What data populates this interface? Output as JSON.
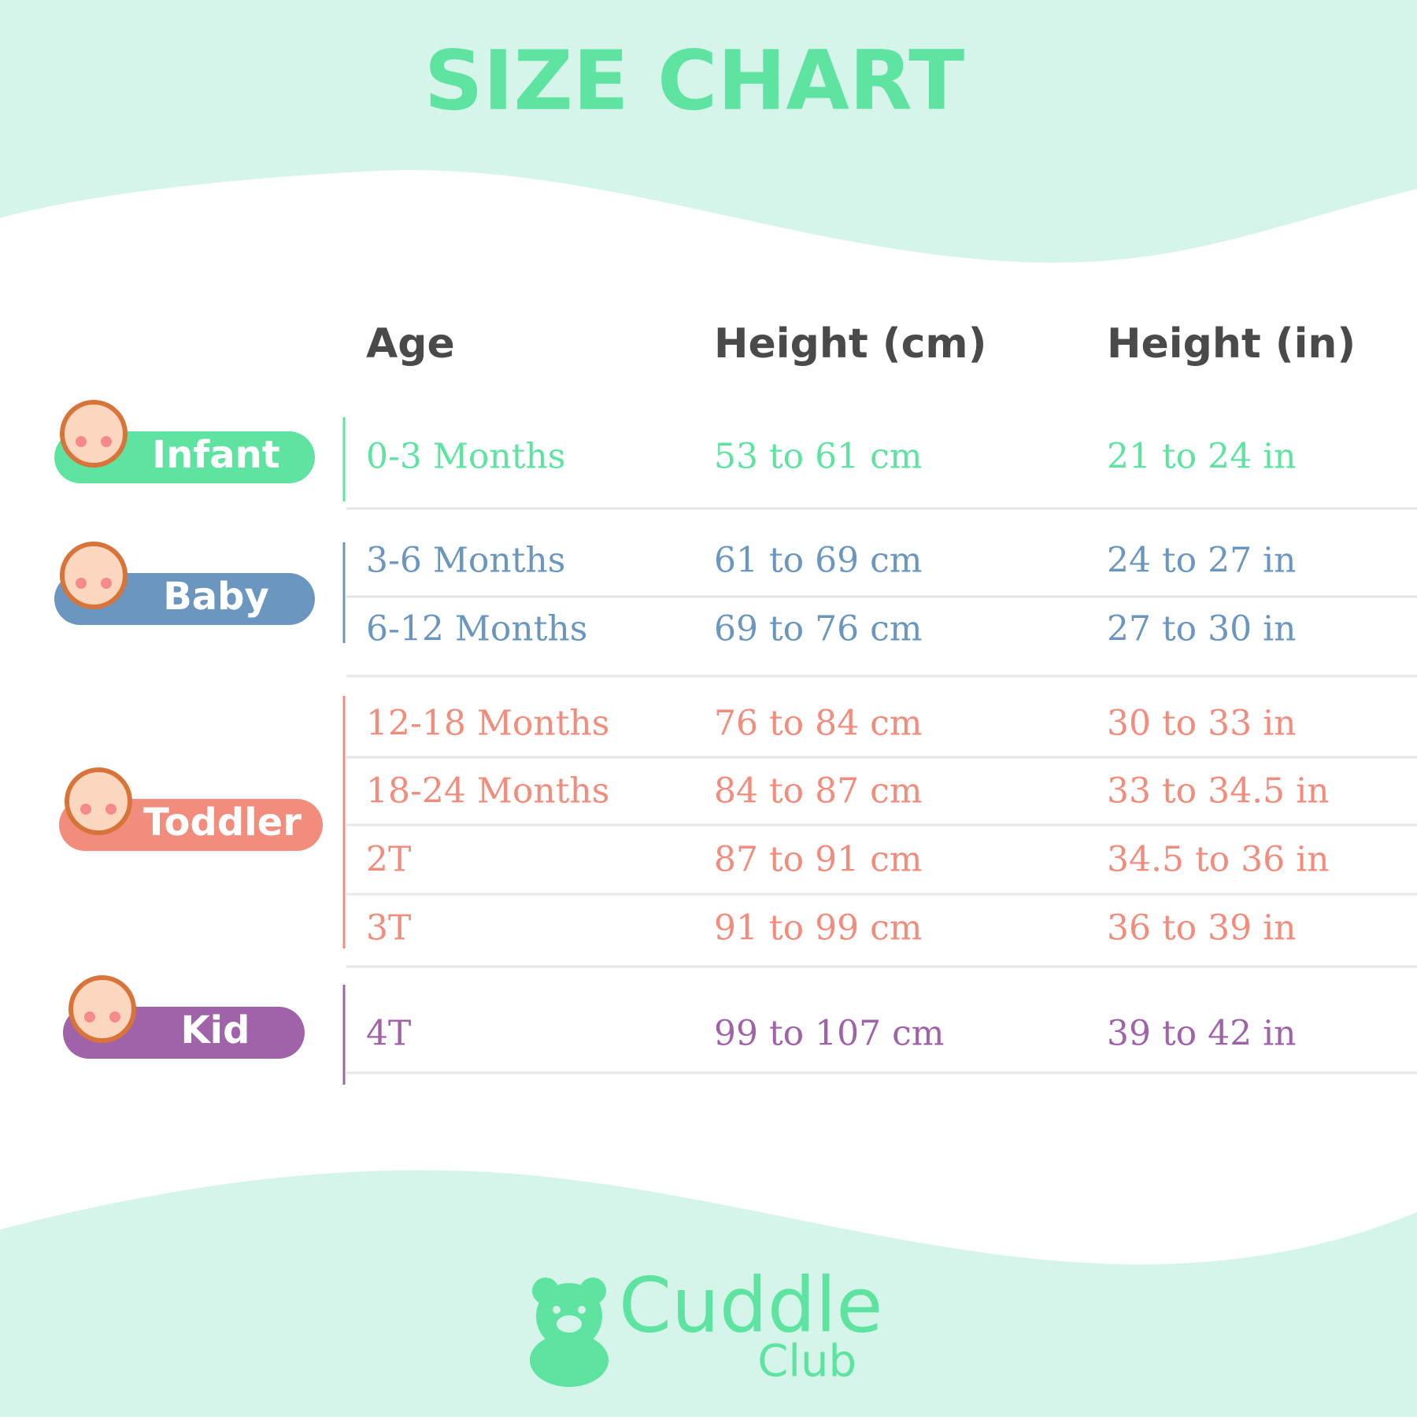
{
  "header": {
    "title": "SIZE CHART"
  },
  "table": {
    "columns": [
      "Age",
      "Height (cm)",
      "Height (in)"
    ],
    "groups": [
      {
        "label": "Infant",
        "color": "#5ee3a1",
        "rows": [
          [
            "0-3 Months",
            "53 to 61 cm",
            "21 to 24 in"
          ]
        ]
      },
      {
        "label": "Baby",
        "color": "#6a96bf",
        "rows": [
          [
            "3-6 Months",
            "61 to 69 cm",
            "24 to 27 in"
          ],
          [
            "6-12 Months",
            "69 to 76 cm",
            "27 to 30 in"
          ]
        ]
      },
      {
        "label": "Toddler",
        "color": "#f28c7c",
        "rows": [
          [
            "12-18 Months",
            "76 to 84 cm",
            "30 to 33 in"
          ],
          [
            "18-24 Months",
            "84 to 87 cm",
            "33 to 34.5 in"
          ],
          [
            "2T",
            "87 to 91 cm",
            "34.5 to 36 in"
          ],
          [
            "3T",
            "91 to 99 cm",
            "36 to 39 in"
          ]
        ]
      },
      {
        "label": "Kid",
        "color": "#a062a8",
        "rows": [
          [
            "4T",
            "99 to 107 cm",
            "39 to 42 in"
          ]
        ]
      }
    ]
  },
  "logo": {
    "name": "Cuddle",
    "sub": "Club"
  }
}
